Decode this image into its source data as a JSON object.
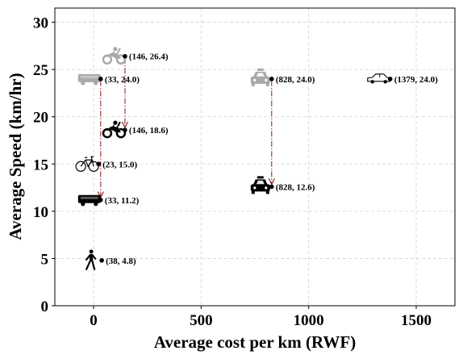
{
  "chart_data": {
    "type": "scatter",
    "xlabel": "Average cost per km (RWF)",
    "ylabel": "Average Speed (km/hr)",
    "xlim": [
      -180,
      1680
    ],
    "ylim": [
      0,
      31.5
    ],
    "xticks": [
      0,
      500,
      1000,
      1500
    ],
    "yticks": [
      0,
      5,
      10,
      15,
      20,
      25,
      30
    ],
    "grid": true,
    "colors": {
      "muted": "#a9a9a9",
      "solid": "#000000",
      "arrow": "#8b1a1a",
      "grid": "#d3d3d3"
    },
    "points": [
      {
        "icon": "motorcycle-icon",
        "x": 146,
        "y": 26.4,
        "label": "(146, 26.4)",
        "muted": true
      },
      {
        "icon": "bus-icon",
        "x": 33,
        "y": 24.0,
        "label": "(33, 24.0)",
        "muted": true
      },
      {
        "icon": "taxi-icon",
        "x": 828,
        "y": 24.0,
        "label": "(828, 24.0)",
        "muted": true
      },
      {
        "icon": "car-icon",
        "x": 1379,
        "y": 24.0,
        "label": "(1379, 24.0)",
        "muted": false
      },
      {
        "icon": "motorcycle-icon",
        "x": 146,
        "y": 18.6,
        "label": "(146, 18.6)",
        "muted": false
      },
      {
        "icon": "bicycle-icon",
        "x": 23,
        "y": 15.0,
        "label": "(23, 15.0)",
        "muted": false
      },
      {
        "icon": "taxi-icon",
        "x": 828,
        "y": 12.6,
        "label": "(828, 12.6)",
        "muted": false
      },
      {
        "icon": "bus-icon",
        "x": 33,
        "y": 11.2,
        "label": "(33, 11.2)",
        "muted": false
      },
      {
        "icon": "pedestrian-icon",
        "x": 38,
        "y": 4.8,
        "label": "(38, 4.8)",
        "muted": false
      }
    ],
    "arrows": [
      {
        "x": 33,
        "from": 24.0,
        "to": 11.2
      },
      {
        "x": 146,
        "from": 26.4,
        "to": 18.6
      },
      {
        "x": 828,
        "from": 24.0,
        "to": 12.6
      }
    ]
  }
}
